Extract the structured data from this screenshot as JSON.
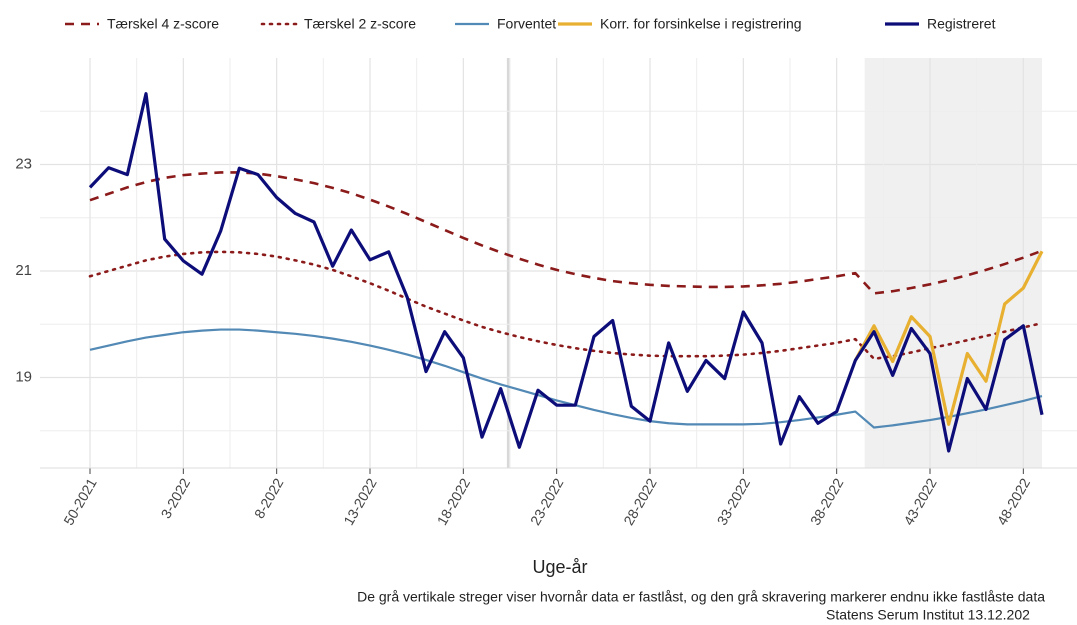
{
  "chart_data": {
    "type": "line",
    "x_label": "Uge-år",
    "caption": "De grå vertikale streger viser hvornår data er fastlåst, og den grå skravering markerer endnu ikke fastlåste data",
    "source": "Statens Serum Institut  13.12.202",
    "categories": [
      "50-2021",
      null,
      null,
      null,
      null,
      "3-2022",
      null,
      null,
      null,
      null,
      "8-2022",
      null,
      null,
      null,
      null,
      "13-2022",
      null,
      null,
      null,
      null,
      "18-2022",
      null,
      null,
      null,
      null,
      "23-2022",
      null,
      null,
      null,
      null,
      "28-2022",
      null,
      null,
      null,
      null,
      "33-2022",
      null,
      null,
      null,
      null,
      "38-2022",
      null,
      null,
      null,
      null,
      "43-2022",
      null,
      null,
      null,
      null,
      "48-2022",
      null
    ],
    "ylim": [
      17.3,
      25
    ],
    "yticks": [
      19,
      21,
      23
    ],
    "grid": true,
    "vline_x": 22.4,
    "shaded_x": [
      41.5,
      51
    ],
    "series": [
      {
        "name": "Tærskel 4 z-score",
        "color": "#8b1a1a",
        "style": "dashed",
        "values": [
          22.33,
          22.45,
          22.57,
          22.67,
          22.75,
          22.8,
          22.83,
          22.85,
          22.85,
          22.83,
          22.78,
          22.72,
          22.65,
          22.56,
          22.46,
          22.34,
          22.21,
          22.07,
          21.92,
          21.77,
          21.62,
          21.48,
          21.35,
          21.23,
          21.12,
          21.02,
          20.94,
          20.87,
          20.81,
          20.77,
          20.74,
          20.72,
          20.71,
          20.7,
          20.7,
          20.71,
          20.73,
          20.76,
          20.8,
          20.85,
          20.9,
          20.96,
          20.58,
          20.62,
          20.68,
          20.75,
          20.83,
          20.92,
          21.02,
          21.13,
          21.25,
          21.38
        ]
      },
      {
        "name": "Tærskel 2 z-score",
        "color": "#8b1a1a",
        "style": "dotted",
        "values": [
          20.9,
          21.0,
          21.1,
          21.2,
          21.27,
          21.32,
          21.35,
          21.36,
          21.35,
          21.32,
          21.27,
          21.2,
          21.12,
          21.02,
          20.9,
          20.77,
          20.63,
          20.48,
          20.33,
          20.2,
          20.07,
          19.95,
          19.85,
          19.76,
          19.68,
          19.61,
          19.55,
          19.5,
          19.46,
          19.43,
          19.41,
          19.4,
          19.4,
          19.4,
          19.41,
          19.43,
          19.46,
          19.5,
          19.55,
          19.6,
          19.65,
          19.72,
          19.35,
          19.4,
          19.47,
          19.55,
          19.62,
          19.7,
          19.78,
          19.86,
          19.94,
          20.02
        ]
      },
      {
        "name": "Forventet",
        "color": "#5289b5",
        "style": "solid",
        "values": [
          19.52,
          19.6,
          19.68,
          19.75,
          19.8,
          19.85,
          19.88,
          19.9,
          19.9,
          19.88,
          19.85,
          19.82,
          19.78,
          19.73,
          19.67,
          19.6,
          19.52,
          19.43,
          19.33,
          19.22,
          19.1,
          18.98,
          18.87,
          18.77,
          18.67,
          18.57,
          18.48,
          18.39,
          18.31,
          18.24,
          18.18,
          18.14,
          18.12,
          18.12,
          18.12,
          18.12,
          18.13,
          18.16,
          18.2,
          18.25,
          18.3,
          18.36,
          18.06,
          18.1,
          18.15,
          18.2,
          18.26,
          18.33,
          18.4,
          18.48,
          18.56,
          18.65
        ]
      },
      {
        "name": "Korr. for forsinkelse i registrering",
        "color": "#e8b030",
        "style": "solid",
        "values": [
          null,
          null,
          null,
          null,
          null,
          null,
          null,
          null,
          null,
          null,
          null,
          null,
          null,
          null,
          null,
          null,
          null,
          null,
          null,
          null,
          null,
          null,
          null,
          null,
          null,
          null,
          null,
          null,
          null,
          null,
          null,
          null,
          null,
          null,
          null,
          null,
          null,
          null,
          null,
          null,
          null,
          19.32,
          19.97,
          19.3,
          20.14,
          19.77,
          18.12,
          19.45,
          18.93,
          20.38,
          20.68,
          21.37
        ]
      },
      {
        "name": "Registreret",
        "color": "#0d0d7a",
        "style": "solid",
        "values": [
          22.57,
          22.94,
          22.81,
          24.33,
          21.6,
          21.19,
          20.94,
          21.75,
          22.93,
          22.81,
          22.38,
          22.08,
          21.92,
          21.09,
          21.77,
          21.21,
          21.36,
          20.5,
          19.11,
          19.86,
          19.37,
          17.88,
          18.79,
          17.69,
          18.76,
          18.48,
          18.48,
          19.77,
          20.07,
          18.46,
          18.18,
          19.65,
          18.74,
          19.32,
          18.98,
          20.23,
          19.65,
          17.75,
          18.64,
          18.14,
          18.36,
          19.32,
          19.86,
          19.04,
          19.92,
          19.45,
          17.62,
          18.98,
          18.4,
          19.71,
          19.97,
          18.3
        ]
      }
    ]
  }
}
